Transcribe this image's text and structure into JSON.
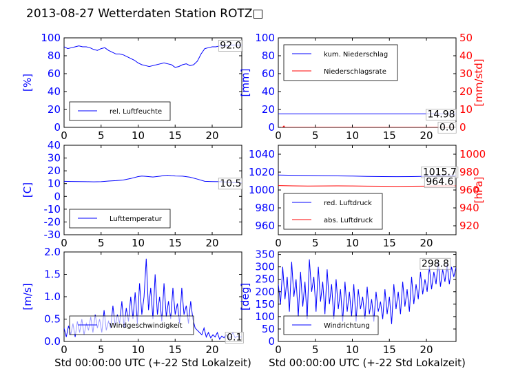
{
  "title": "2013-08-27 Wetterdaten Station ROTZ□",
  "shared_xlabel": "Std 00:00:00 UTC (+-22 Std Lokalzeit)",
  "colors": {
    "primary": "#0000ff",
    "secondary": "#ff0000",
    "text": "#000000"
  },
  "chart_data": [
    {
      "id": "humidity",
      "type": "line",
      "ylabel": "[%]",
      "xlim": [
        0,
        24
      ],
      "ylim": [
        0,
        100
      ],
      "xticks": [
        0,
        5,
        10,
        15,
        20
      ],
      "yticks": [
        0,
        20,
        40,
        60,
        80,
        100
      ],
      "legend_position": "lower-left",
      "series": [
        {
          "name": "rel. Luftfeuchte",
          "color": "#0000ff",
          "axis": "left",
          "x": [
            0,
            0.5,
            1,
            1.5,
            2,
            2.5,
            3,
            3.5,
            4,
            4.5,
            5,
            5.5,
            6,
            6.5,
            7,
            7.5,
            8,
            8.5,
            9,
            9.5,
            10,
            10.5,
            11,
            11.5,
            12,
            12.5,
            13,
            13.5,
            14,
            14.5,
            15,
            15.5,
            16,
            16.5,
            17,
            17.5,
            18,
            18.5,
            19,
            19.5,
            20,
            20.5,
            21,
            21.5,
            22,
            22.5,
            23,
            23.5,
            24
          ],
          "values": [
            90,
            88,
            89,
            90,
            91,
            90,
            90,
            89,
            87,
            86,
            88,
            89,
            86,
            84,
            82,
            82,
            81,
            79,
            77,
            75,
            72,
            70,
            69,
            68,
            69,
            70,
            71,
            72,
            71,
            70,
            67,
            68,
            70,
            71,
            69,
            70,
            74,
            82,
            88,
            89,
            90,
            90,
            91,
            91,
            91,
            92,
            92,
            92,
            92
          ]
        }
      ],
      "annotations": [
        {
          "text": "92.0",
          "x": 22.5,
          "y": 92,
          "axis": "left"
        }
      ]
    },
    {
      "id": "precipitation",
      "type": "line",
      "ylabel": "[mm]",
      "ylabel2": "[mm/std]",
      "xlim": [
        0,
        24
      ],
      "ylim": [
        0,
        100
      ],
      "ylim2": [
        0,
        50
      ],
      "xticks": [
        0,
        5,
        10,
        15,
        20
      ],
      "yticks": [
        0,
        20,
        40,
        60,
        80,
        100
      ],
      "yticks2": [
        0,
        10,
        20,
        30,
        40,
        50
      ],
      "legend_position": "upper-left",
      "series": [
        {
          "name": "kum. Niederschlag",
          "color": "#0000ff",
          "axis": "left",
          "x": [
            0,
            24
          ],
          "values": [
            14.98,
            14.98
          ]
        },
        {
          "name": "Niederschlagsrate",
          "color": "#ff0000",
          "axis": "right",
          "x": [
            0,
            0.6,
            0.75,
            0.9,
            1.1,
            24
          ],
          "values": [
            0,
            0,
            0.8,
            0,
            0,
            0
          ]
        }
      ],
      "annotations": [
        {
          "text": "14.98",
          "x": 22.0,
          "y": 14.98,
          "axis": "left"
        },
        {
          "text": "0.0",
          "x": 22.8,
          "y": 0.5,
          "axis": "left"
        }
      ]
    },
    {
      "id": "temperature",
      "type": "line",
      "ylabel": "[C]",
      "xlim": [
        0,
        24
      ],
      "ylim": [
        -30,
        40
      ],
      "xticks": [
        0,
        5,
        10,
        15,
        20
      ],
      "yticks": [
        -30,
        -20,
        -10,
        0,
        10,
        20,
        30,
        40
      ],
      "legend_position": "lower-left",
      "series": [
        {
          "name": "Lufttemperatur",
          "color": "#0000ff",
          "axis": "left",
          "x": [
            0,
            1,
            2,
            3,
            4,
            5,
            6,
            7,
            8,
            9,
            10,
            10.5,
            11,
            12,
            13,
            13.5,
            14,
            14.5,
            15,
            16,
            17,
            18,
            19,
            20,
            21,
            22,
            23,
            24
          ],
          "values": [
            11.8,
            11.7,
            11.6,
            11.5,
            11.4,
            11.5,
            12.0,
            12.3,
            12.8,
            14.0,
            15.5,
            15.9,
            15.7,
            15.2,
            15.8,
            16.3,
            16.6,
            16.2,
            16.0,
            15.8,
            15.0,
            13.5,
            11.8,
            11.6,
            11.5,
            11.2,
            10.8,
            10.5
          ]
        }
      ],
      "annotations": [
        {
          "text": "10.5",
          "x": 22.5,
          "y": 10.5,
          "axis": "left"
        }
      ]
    },
    {
      "id": "pressure",
      "type": "line",
      "ylabel2": "[hPa]",
      "xlim": [
        0,
        24
      ],
      "ylim": [
        950,
        1050
      ],
      "ylim2": [
        910,
        1010
      ],
      "xticks": [
        0,
        5,
        10,
        15,
        20
      ],
      "yticks": [
        960,
        980,
        1000,
        1020,
        1040
      ],
      "yticks2": [
        920,
        940,
        960,
        980,
        1000
      ],
      "legend_position": "lower-left",
      "series": [
        {
          "name": "red. Luftdruck",
          "color": "#0000ff",
          "axis": "left",
          "x": [
            0,
            2,
            4,
            6,
            8,
            10,
            12,
            14,
            16,
            18,
            20,
            22,
            24
          ],
          "values": [
            1016.8,
            1016.5,
            1016.2,
            1016.0,
            1015.8,
            1015.5,
            1015.2,
            1015.0,
            1014.9,
            1015.0,
            1015.3,
            1015.6,
            1015.7
          ]
        },
        {
          "name": "abs. Luftdruck",
          "color": "#ff0000",
          "axis": "right",
          "x": [
            0,
            2,
            4,
            6,
            8,
            10,
            12,
            14,
            16,
            18,
            20,
            22,
            24
          ],
          "values": [
            964.9,
            964.6,
            964.4,
            964.5,
            964.6,
            964.5,
            964.3,
            964.2,
            964.1,
            964.2,
            964.3,
            964.5,
            964.6
          ]
        }
      ],
      "annotations": [
        {
          "text": "1015.7",
          "x": 21.8,
          "y": 1020.5,
          "axis": "left"
        },
        {
          "text": "964.6",
          "x": 21.8,
          "y": 1009.5,
          "axis": "left"
        }
      ]
    },
    {
      "id": "windspeed",
      "type": "line",
      "ylabel": "[m/s]",
      "xlabel": "Std 00:00:00 UTC (+-22 Std Lokalzeit)",
      "xlim": [
        0,
        24
      ],
      "ylim": [
        0,
        2.0
      ],
      "xticks": [
        0,
        5,
        10,
        15,
        20
      ],
      "yticks": [
        0.0,
        0.5,
        1.0,
        1.5,
        2.0
      ],
      "ytick_labels": [
        "0.0",
        "0.5",
        "1.0",
        "1.5",
        "2.0"
      ],
      "legend_position": "lower-left",
      "series": [
        {
          "name": "Windgeschwindigkeit",
          "color": "#0000ff",
          "axis": "left",
          "x": [
            0,
            0.3,
            0.6,
            0.9,
            1.2,
            1.5,
            1.8,
            2.1,
            2.4,
            2.7,
            3.0,
            3.3,
            3.6,
            3.9,
            4.2,
            4.5,
            4.8,
            5.1,
            5.4,
            5.7,
            6.0,
            6.3,
            6.6,
            6.9,
            7.2,
            7.5,
            7.8,
            8.1,
            8.4,
            8.7,
            9.0,
            9.3,
            9.6,
            9.9,
            10.2,
            10.5,
            10.8,
            11.1,
            11.4,
            11.7,
            12.0,
            12.3,
            12.6,
            12.9,
            13.2,
            13.5,
            13.8,
            14.1,
            14.4,
            14.7,
            15.0,
            15.3,
            15.6,
            15.9,
            16.2,
            16.5,
            16.8,
            17.1,
            17.4,
            17.7,
            18.0,
            18.3,
            18.6,
            18.9,
            19.2,
            19.5,
            19.8,
            20.1,
            20.4,
            20.7,
            21.0,
            21.3,
            21.6,
            21.9,
            22.2,
            22.5,
            22.8,
            23.1,
            23.4,
            23.7,
            24.0
          ],
          "values": [
            0.3,
            0.1,
            0.35,
            0.15,
            0.4,
            0.1,
            0.45,
            0.2,
            0.5,
            0.15,
            0.4,
            0.25,
            0.55,
            0.2,
            0.6,
            0.3,
            0.5,
            0.2,
            0.7,
            0.25,
            0.45,
            0.3,
            0.8,
            0.35,
            0.6,
            0.4,
            0.9,
            0.3,
            0.75,
            0.45,
            1.0,
            0.5,
            1.1,
            0.4,
            1.3,
            0.6,
            1.0,
            1.85,
            0.7,
            1.2,
            0.5,
            1.5,
            0.6,
            1.0,
            0.45,
            1.3,
            0.55,
            0.9,
            0.5,
            1.2,
            0.6,
            0.85,
            0.4,
            1.2,
            0.6,
            0.8,
            0.4,
            0.9,
            0.5,
            0.3,
            0.25,
            0.2,
            0.15,
            0.3,
            0.1,
            0.2,
            0.08,
            0.15,
            0.1,
            0.2,
            0.05,
            0.12,
            0.08,
            0.15,
            0.05,
            0.1,
            0.2,
            0.08,
            0.12,
            0.1,
            0.1
          ]
        }
      ],
      "annotations": [
        {
          "text": "0.1",
          "x": 23.0,
          "y": 0.1,
          "axis": "left"
        }
      ]
    },
    {
      "id": "winddirection",
      "type": "line",
      "ylabel": "[deg]",
      "xlabel": "Std 00:00:00 UTC (+-22 Std Lokalzeit)",
      "xlim": [
        0,
        24
      ],
      "ylim": [
        0,
        360
      ],
      "xticks": [
        0,
        5,
        10,
        15,
        20
      ],
      "yticks": [
        0,
        50,
        100,
        150,
        200,
        250,
        300,
        350
      ],
      "legend_position": "lower-left",
      "series": [
        {
          "name": "Windrichtung",
          "color": "#0000ff",
          "axis": "left",
          "x": [
            0,
            0.3,
            0.6,
            0.9,
            1.2,
            1.5,
            1.8,
            2.1,
            2.4,
            2.7,
            3.0,
            3.3,
            3.6,
            3.9,
            4.2,
            4.5,
            4.8,
            5.1,
            5.4,
            5.7,
            6.0,
            6.3,
            6.6,
            6.9,
            7.2,
            7.5,
            7.8,
            8.1,
            8.4,
            8.7,
            9.0,
            9.3,
            9.6,
            9.9,
            10.2,
            10.5,
            10.8,
            11.1,
            11.4,
            11.7,
            12.0,
            12.3,
            12.6,
            12.9,
            13.2,
            13.5,
            13.8,
            14.1,
            14.4,
            14.7,
            15.0,
            15.3,
            15.6,
            15.9,
            16.2,
            16.5,
            16.8,
            17.1,
            17.4,
            17.7,
            18.0,
            18.3,
            18.6,
            18.9,
            19.2,
            19.5,
            19.8,
            20.1,
            20.4,
            20.7,
            21.0,
            21.3,
            21.6,
            21.9,
            22.2,
            22.5,
            22.8,
            23.1,
            23.4,
            23.7,
            24.0
          ],
          "values": [
            230,
            150,
            300,
            170,
            260,
            120,
            320,
            180,
            250,
            100,
            280,
            140,
            240,
            90,
            330,
            200,
            260,
            120,
            300,
            160,
            240,
            110,
            290,
            150,
            230,
            90,
            250,
            130,
            210,
            80,
            240,
            120,
            200,
            100,
            230,
            80,
            210,
            130,
            180,
            90,
            220,
            110,
            170,
            80,
            200,
            120,
            160,
            90,
            210,
            110,
            180,
            70,
            230,
            130,
            200,
            110,
            240,
            140,
            210,
            120,
            260,
            150,
            230,
            170,
            280,
            190,
            250,
            200,
            300,
            210,
            280,
            230,
            320,
            220,
            290,
            240,
            310,
            230,
            300,
            260,
            299
          ]
        }
      ],
      "annotations": [
        {
          "text": "298.8",
          "x": 21.2,
          "y": 315,
          "axis": "left"
        }
      ]
    }
  ]
}
